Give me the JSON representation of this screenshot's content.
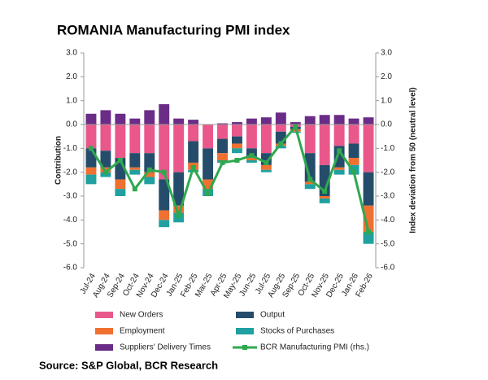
{
  "chart_data": {
    "type": "bar",
    "title": "ROMANIA Manufacturing PMI index",
    "source": "Source: S&P Global, BCR Research",
    "ylabel": "Contribution",
    "y2label": "Index deviation from 50 (neutral level)",
    "categories": [
      "Jul-24",
      "Aug-24",
      "Sep-24",
      "Oct-24",
      "Nov-24",
      "Dec-24",
      "Jan-25",
      "Feb-25",
      "Mar-25",
      "Apr-25",
      "May-25",
      "Jun-25",
      "Jul-25",
      "Aug-25",
      "Sep-25",
      "Oct-25",
      "Nov-25",
      "Dec-25",
      "Jan-26",
      "Feb-26"
    ],
    "series": [
      {
        "name": "New Orders",
        "color": "#e9578b",
        "values": [
          -1.0,
          -1.1,
          -1.4,
          -1.2,
          -1.2,
          -2.3,
          -2.0,
          -0.7,
          -1.0,
          -0.6,
          -0.5,
          -1.0,
          -1.2,
          -0.3,
          -0.1,
          -1.2,
          -1.7,
          -0.9,
          -0.8,
          -2.0
        ]
      },
      {
        "name": "Output",
        "color": "#254d6b",
        "values": [
          -0.8,
          -0.7,
          -0.9,
          -0.6,
          -0.8,
          -1.3,
          -1.4,
          -0.9,
          -1.3,
          -0.6,
          -0.3,
          -0.4,
          -0.5,
          -0.5,
          -0.1,
          -1.2,
          -1.3,
          -0.9,
          -0.6,
          -1.4
        ]
      },
      {
        "name": "Employment",
        "color": "#f07030",
        "values": [
          -0.3,
          -0.2,
          -0.4,
          -0.1,
          -0.2,
          -0.4,
          -0.3,
          -0.3,
          -0.4,
          -0.3,
          -0.2,
          -0.1,
          -0.2,
          -0.1,
          -0.1,
          -0.1,
          -0.1,
          -0.1,
          -0.3,
          -1.1
        ]
      },
      {
        "name": "Stocks of Purchases",
        "color": "#20a0a0",
        "values": [
          -0.4,
          -0.2,
          -0.3,
          -0.2,
          -0.3,
          -0.3,
          -0.4,
          -0.1,
          -0.3,
          -0.1,
          -0.2,
          -0.1,
          -0.1,
          -0.1,
          -0.05,
          -0.2,
          -0.2,
          -0.2,
          -0.4,
          -0.5
        ]
      },
      {
        "name": "Suppliers' Delivery Times",
        "color": "#6a2c86",
        "values": [
          0.45,
          0.6,
          0.45,
          0.25,
          0.6,
          0.85,
          0.25,
          0.2,
          0.0,
          0.05,
          0.1,
          0.25,
          0.3,
          0.5,
          0.1,
          0.35,
          0.4,
          0.4,
          0.25,
          0.3
        ]
      },
      {
        "name": "BCR Manufacturing PMI (rhs.)",
        "type": "line",
        "axis": "y2",
        "color": "#2fa84f",
        "values": [
          -1.0,
          -2.0,
          -1.5,
          -2.7,
          -1.9,
          -2.0,
          -3.8,
          -1.8,
          -2.9,
          -1.6,
          -1.5,
          -1.3,
          -1.6,
          -0.8,
          -0.1,
          -2.3,
          -2.8,
          -1.1,
          -2.0,
          -4.5
        ]
      }
    ],
    "ylim": [
      -6,
      3
    ],
    "yticks": [
      {
        "value": 3,
        "label": "3.0"
      },
      {
        "value": 2,
        "label": "2.0"
      },
      {
        "value": 1,
        "label": "1.0"
      },
      {
        "value": 0,
        "label": "0.0"
      },
      {
        "value": -1,
        "label": "-1.0"
      },
      {
        "value": -2,
        "label": "-2.0"
      },
      {
        "value": -3,
        "label": "-3.0"
      },
      {
        "value": -4,
        "label": "-4.0"
      },
      {
        "value": -5,
        "label": "-5.0"
      },
      {
        "value": -6,
        "label": "-6.0"
      }
    ],
    "y2lim": [
      -6,
      3
    ],
    "y2ticks": [
      {
        "value": 3,
        "label": "3.0"
      },
      {
        "value": 2,
        "label": "2.0"
      },
      {
        "value": 1,
        "label": "1.0"
      },
      {
        "value": 0,
        "label": "0.0"
      },
      {
        "value": -1,
        "label": "-1.0"
      },
      {
        "value": -2,
        "label": "-2.0"
      },
      {
        "value": -3,
        "label": "-3.0"
      },
      {
        "value": -4,
        "label": "-4.0"
      },
      {
        "value": -5,
        "label": "-5.0"
      },
      {
        "value": -6,
        "label": "-6.0"
      }
    ]
  }
}
